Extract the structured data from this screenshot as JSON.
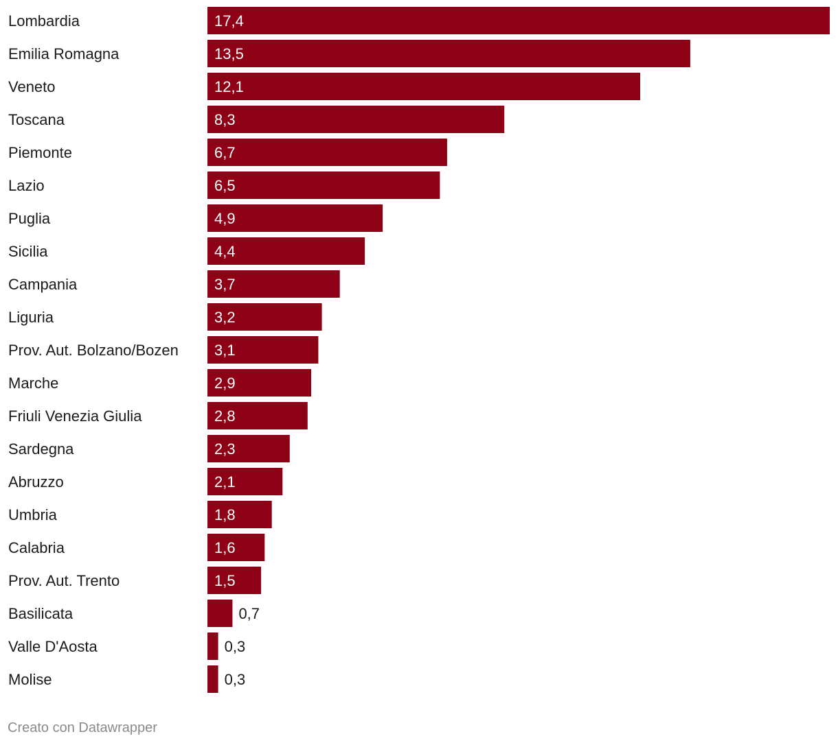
{
  "chart_data": {
    "type": "bar",
    "orientation": "horizontal",
    "categories": [
      "Lombardia",
      "Emilia Romagna",
      "Veneto",
      "Toscana",
      "Piemonte",
      "Lazio",
      "Puglia",
      "Sicilia",
      "Campania",
      "Liguria",
      "Prov. Aut. Bolzano/Bozen",
      "Marche",
      "Friuli Venezia Giulia",
      "Sardegna",
      "Abruzzo",
      "Umbria",
      "Calabria",
      "Prov. Aut. Trento",
      "Basilicata",
      "Valle D'Aosta",
      "Molise"
    ],
    "values": [
      17.4,
      13.5,
      12.1,
      8.3,
      6.7,
      6.5,
      4.9,
      4.4,
      3.7,
      3.2,
      3.1,
      2.9,
      2.8,
      2.3,
      2.1,
      1.8,
      1.6,
      1.5,
      0.7,
      0.3,
      0.3
    ],
    "value_labels": [
      "17,4",
      "13,5",
      "12,1",
      "8,3",
      "6,7",
      "6,5",
      "4,9",
      "4,4",
      "3,7",
      "3,2",
      "3,1",
      "2,9",
      "2,8",
      "2,3",
      "2,1",
      "1,8",
      "1,6",
      "1,5",
      "0,7",
      "0,3",
      "0,3"
    ],
    "xlim": [
      0,
      17.4
    ],
    "bar_color": "#8e0016",
    "grid": false,
    "legend": "none"
  },
  "footer": {
    "credit": "Creato con Datawrapper"
  }
}
